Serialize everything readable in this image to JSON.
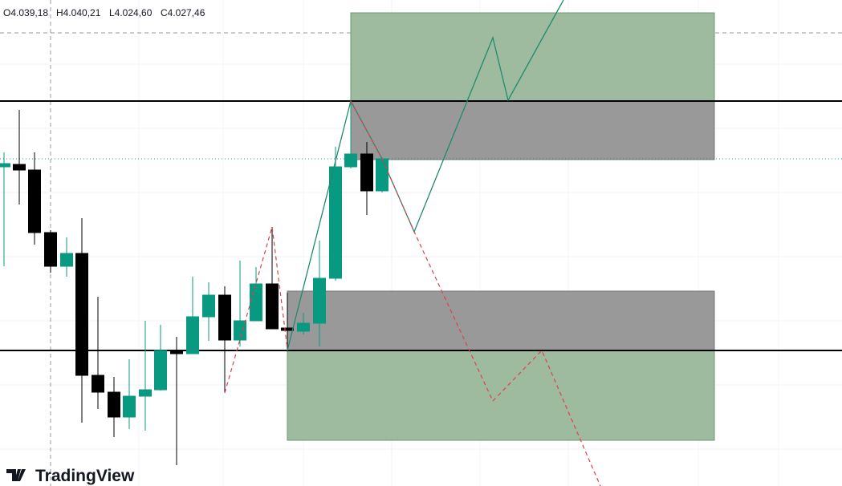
{
  "legend": {
    "open": "O4.039,18",
    "high": "H4.040,21",
    "low": "L4.024,60",
    "close": "C4.027,46"
  },
  "brand": "TradingView"
}
